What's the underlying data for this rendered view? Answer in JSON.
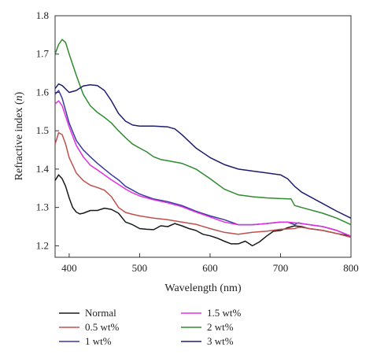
{
  "chart_data": {
    "type": "line",
    "xlabel": "Wavelength (nm)",
    "ylabel_main": "Refractive index (",
    "ylabel_var": "n",
    "ylabel_end": ")",
    "xlim": [
      380,
      800
    ],
    "ylim": [
      1.17,
      1.8
    ],
    "x_ticks": [
      400,
      500,
      600,
      700,
      800
    ],
    "y_ticks": [
      1.2,
      1.3,
      1.4,
      1.5,
      1.6,
      1.7,
      1.8
    ],
    "grid": false,
    "legend_position": "bottom",
    "series": [
      {
        "name": "Normal",
        "color": "#1a1a1a",
        "points": [
          [
            380,
            1.37
          ],
          [
            385,
            1.385
          ],
          [
            390,
            1.375
          ],
          [
            395,
            1.355
          ],
          [
            400,
            1.325
          ],
          [
            405,
            1.3
          ],
          [
            410,
            1.288
          ],
          [
            415,
            1.283
          ],
          [
            420,
            1.285
          ],
          [
            430,
            1.292
          ],
          [
            440,
            1.292
          ],
          [
            450,
            1.298
          ],
          [
            460,
            1.295
          ],
          [
            470,
            1.285
          ],
          [
            480,
            1.262
          ],
          [
            490,
            1.255
          ],
          [
            500,
            1.245
          ],
          [
            510,
            1.243
          ],
          [
            520,
            1.242
          ],
          [
            530,
            1.252
          ],
          [
            540,
            1.25
          ],
          [
            550,
            1.258
          ],
          [
            560,
            1.252
          ],
          [
            570,
            1.245
          ],
          [
            580,
            1.24
          ],
          [
            590,
            1.23
          ],
          [
            600,
            1.226
          ],
          [
            610,
            1.22
          ],
          [
            620,
            1.212
          ],
          [
            630,
            1.205
          ],
          [
            640,
            1.205
          ],
          [
            650,
            1.212
          ],
          [
            660,
            1.2
          ],
          [
            670,
            1.21
          ],
          [
            680,
            1.225
          ],
          [
            690,
            1.238
          ],
          [
            700,
            1.24
          ],
          [
            710,
            1.247
          ],
          [
            720,
            1.252
          ],
          [
            730,
            1.25
          ],
          [
            740,
            1.245
          ],
          [
            760,
            1.24
          ],
          [
            780,
            1.232
          ],
          [
            800,
            1.225
          ]
        ]
      },
      {
        "name": "0.5 wt%",
        "color": "#c0504d",
        "points": [
          [
            380,
            1.465
          ],
          [
            385,
            1.495
          ],
          [
            390,
            1.49
          ],
          [
            395,
            1.465
          ],
          [
            400,
            1.43
          ],
          [
            410,
            1.39
          ],
          [
            420,
            1.37
          ],
          [
            430,
            1.358
          ],
          [
            440,
            1.352
          ],
          [
            450,
            1.345
          ],
          [
            460,
            1.328
          ],
          [
            470,
            1.3
          ],
          [
            480,
            1.287
          ],
          [
            490,
            1.282
          ],
          [
            500,
            1.278
          ],
          [
            520,
            1.272
          ],
          [
            540,
            1.268
          ],
          [
            560,
            1.262
          ],
          [
            580,
            1.256
          ],
          [
            600,
            1.245
          ],
          [
            620,
            1.235
          ],
          [
            640,
            1.23
          ],
          [
            660,
            1.235
          ],
          [
            680,
            1.238
          ],
          [
            700,
            1.243
          ],
          [
            720,
            1.245
          ],
          [
            725,
            1.248
          ],
          [
            730,
            1.248
          ],
          [
            760,
            1.24
          ],
          [
            780,
            1.232
          ],
          [
            800,
            1.222
          ]
        ]
      },
      {
        "name": "1 wt%",
        "color": "#3a3aa0",
        "points": [
          [
            380,
            1.595
          ],
          [
            385,
            1.605
          ],
          [
            390,
            1.585
          ],
          [
            400,
            1.52
          ],
          [
            410,
            1.475
          ],
          [
            420,
            1.45
          ],
          [
            430,
            1.432
          ],
          [
            440,
            1.415
          ],
          [
            450,
            1.4
          ],
          [
            460,
            1.385
          ],
          [
            470,
            1.372
          ],
          [
            480,
            1.355
          ],
          [
            490,
            1.345
          ],
          [
            500,
            1.335
          ],
          [
            520,
            1.322
          ],
          [
            540,
            1.315
          ],
          [
            560,
            1.305
          ],
          [
            580,
            1.29
          ],
          [
            600,
            1.278
          ],
          [
            620,
            1.268
          ],
          [
            640,
            1.255
          ],
          [
            660,
            1.255
          ],
          [
            680,
            1.258
          ],
          [
            700,
            1.262
          ],
          [
            710,
            1.262
          ],
          [
            720,
            1.255
          ],
          [
            725,
            1.26
          ],
          [
            730,
            1.258
          ],
          [
            760,
            1.25
          ],
          [
            780,
            1.24
          ],
          [
            800,
            1.225
          ]
        ]
      },
      {
        "name": "1.5 wt%",
        "color": "#e030e0",
        "points": [
          [
            380,
            1.57
          ],
          [
            385,
            1.578
          ],
          [
            390,
            1.565
          ],
          [
            400,
            1.51
          ],
          [
            410,
            1.462
          ],
          [
            420,
            1.432
          ],
          [
            430,
            1.41
          ],
          [
            440,
            1.398
          ],
          [
            450,
            1.385
          ],
          [
            460,
            1.372
          ],
          [
            470,
            1.36
          ],
          [
            480,
            1.348
          ],
          [
            490,
            1.338
          ],
          [
            500,
            1.33
          ],
          [
            520,
            1.32
          ],
          [
            540,
            1.312
          ],
          [
            560,
            1.302
          ],
          [
            580,
            1.288
          ],
          [
            600,
            1.275
          ],
          [
            620,
            1.262
          ],
          [
            640,
            1.255
          ],
          [
            660,
            1.255
          ],
          [
            680,
            1.258
          ],
          [
            700,
            1.262
          ],
          [
            710,
            1.262
          ],
          [
            720,
            1.26
          ],
          [
            730,
            1.258
          ],
          [
            760,
            1.25
          ],
          [
            780,
            1.24
          ],
          [
            800,
            1.225
          ]
        ]
      },
      {
        "name": "2 wt%",
        "color": "#2e8b2e",
        "points": [
          [
            380,
            1.7
          ],
          [
            385,
            1.725
          ],
          [
            390,
            1.738
          ],
          [
            395,
            1.73
          ],
          [
            400,
            1.7
          ],
          [
            410,
            1.645
          ],
          [
            420,
            1.595
          ],
          [
            430,
            1.565
          ],
          [
            440,
            1.548
          ],
          [
            450,
            1.535
          ],
          [
            460,
            1.52
          ],
          [
            470,
            1.5
          ],
          [
            480,
            1.482
          ],
          [
            490,
            1.465
          ],
          [
            500,
            1.455
          ],
          [
            510,
            1.445
          ],
          [
            520,
            1.432
          ],
          [
            530,
            1.425
          ],
          [
            540,
            1.422
          ],
          [
            560,
            1.415
          ],
          [
            580,
            1.4
          ],
          [
            600,
            1.375
          ],
          [
            620,
            1.348
          ],
          [
            640,
            1.333
          ],
          [
            660,
            1.328
          ],
          [
            680,
            1.325
          ],
          [
            700,
            1.323
          ],
          [
            715,
            1.322
          ],
          [
            718,
            1.312
          ],
          [
            720,
            1.305
          ],
          [
            730,
            1.3
          ],
          [
            760,
            1.285
          ],
          [
            780,
            1.272
          ],
          [
            800,
            1.255
          ]
        ]
      },
      {
        "name": "3 wt%",
        "color": "#1e1e6e",
        "points": [
          [
            380,
            1.61
          ],
          [
            385,
            1.622
          ],
          [
            390,
            1.618
          ],
          [
            400,
            1.6
          ],
          [
            410,
            1.605
          ],
          [
            420,
            1.617
          ],
          [
            430,
            1.62
          ],
          [
            440,
            1.618
          ],
          [
            450,
            1.605
          ],
          [
            460,
            1.578
          ],
          [
            470,
            1.545
          ],
          [
            480,
            1.525
          ],
          [
            490,
            1.515
          ],
          [
            500,
            1.512
          ],
          [
            520,
            1.512
          ],
          [
            540,
            1.51
          ],
          [
            550,
            1.505
          ],
          [
            560,
            1.49
          ],
          [
            580,
            1.455
          ],
          [
            600,
            1.43
          ],
          [
            620,
            1.412
          ],
          [
            640,
            1.4
          ],
          [
            660,
            1.395
          ],
          [
            680,
            1.39
          ],
          [
            700,
            1.385
          ],
          [
            710,
            1.375
          ],
          [
            720,
            1.355
          ],
          [
            730,
            1.34
          ],
          [
            760,
            1.31
          ],
          [
            780,
            1.29
          ],
          [
            800,
            1.272
          ]
        ]
      }
    ]
  }
}
